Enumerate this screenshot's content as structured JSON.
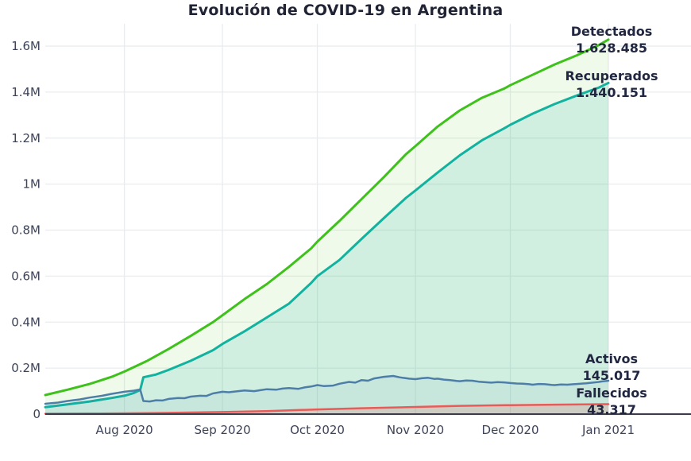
{
  "title": "Evolución de COVID-19 en Argentina",
  "colors": {
    "background": "#ffffff",
    "grid": "#e8ecef",
    "axis": "#3c3c48",
    "tick_text": "#3d4359",
    "title_text": "#1f2333",
    "annotation_text": "#222741",
    "detectados": "#3fc11c",
    "recuperados": "#12b2a0",
    "activos": "#4d7ea8",
    "fallecidos": "#ea5a57"
  },
  "chart_data": {
    "type": "line",
    "title": "Evolución de COVID-19 en Argentina",
    "grid": true,
    "legend_position": "end-of-line annotations (right side)",
    "x_axis": {
      "range_days": [
        0,
        178
      ],
      "ticks": [
        {
          "label": "Aug 2020",
          "day": 25
        },
        {
          "label": "Sep 2020",
          "day": 56
        },
        {
          "label": "Oct 2020",
          "day": 86
        },
        {
          "label": "Nov 2020",
          "day": 117
        },
        {
          "label": "Dec 2020",
          "day": 147
        },
        {
          "label": "Jan 2021",
          "day": 178
        }
      ]
    },
    "y_axis": {
      "range": [
        0,
        1600000
      ],
      "ticks": [
        {
          "label": "0",
          "value": 0
        },
        {
          "label": "0.2M",
          "value": 200000
        },
        {
          "label": "0.4M",
          "value": 400000
        },
        {
          "label": "0.6M",
          "value": 600000
        },
        {
          "label": "0.8M",
          "value": 800000
        },
        {
          "label": "1M",
          "value": 1000000
        },
        {
          "label": "1.2M",
          "value": 1200000
        },
        {
          "label": "1.4M",
          "value": 1400000
        },
        {
          "label": "1.6M",
          "value": 1600000
        }
      ]
    },
    "series": [
      {
        "name": "Detectados",
        "final_value": 1628485,
        "color": "#3fc11c",
        "fill": "rgba(102,204,51,0.10)",
        "width": 3,
        "points": [
          [
            0,
            83000
          ],
          [
            7,
            106000
          ],
          [
            14,
            131000
          ],
          [
            21,
            162000
          ],
          [
            25,
            185000
          ],
          [
            32,
            230000
          ],
          [
            39,
            283000
          ],
          [
            46,
            340000
          ],
          [
            53,
            400000
          ],
          [
            56,
            430000
          ],
          [
            63,
            500000
          ],
          [
            70,
            565000
          ],
          [
            77,
            640000
          ],
          [
            84,
            720000
          ],
          [
            86,
            750000
          ],
          [
            93,
            840000
          ],
          [
            100,
            935000
          ],
          [
            107,
            1030000
          ],
          [
            114,
            1130000
          ],
          [
            117,
            1165000
          ],
          [
            124,
            1250000
          ],
          [
            131,
            1320000
          ],
          [
            138,
            1375000
          ],
          [
            145,
            1415000
          ],
          [
            147,
            1430000
          ],
          [
            154,
            1475000
          ],
          [
            161,
            1520000
          ],
          [
            168,
            1560000
          ],
          [
            175,
            1605000
          ],
          [
            178,
            1628485
          ]
        ]
      },
      {
        "name": "Recuperados",
        "final_value": 1440151,
        "color": "#12b2a0",
        "fill": "rgba(18,178,160,0.14)",
        "width": 3,
        "points": [
          [
            0,
            30000
          ],
          [
            7,
            42000
          ],
          [
            14,
            55000
          ],
          [
            21,
            70000
          ],
          [
            25,
            80000
          ],
          [
            28,
            92000
          ],
          [
            30,
            105000
          ],
          [
            31,
            160000
          ],
          [
            35,
            172000
          ],
          [
            39,
            192000
          ],
          [
            46,
            232000
          ],
          [
            53,
            278000
          ],
          [
            56,
            305000
          ],
          [
            63,
            360000
          ],
          [
            70,
            420000
          ],
          [
            77,
            480000
          ],
          [
            84,
            570000
          ],
          [
            86,
            600000
          ],
          [
            93,
            670000
          ],
          [
            100,
            762000
          ],
          [
            107,
            852000
          ],
          [
            114,
            940000
          ],
          [
            117,
            972000
          ],
          [
            124,
            1050000
          ],
          [
            131,
            1125000
          ],
          [
            138,
            1190000
          ],
          [
            145,
            1242000
          ],
          [
            147,
            1258000
          ],
          [
            154,
            1306000
          ],
          [
            161,
            1348000
          ],
          [
            168,
            1385000
          ],
          [
            175,
            1420000
          ],
          [
            178,
            1440151
          ]
        ]
      },
      {
        "name": "Activos",
        "final_value": 145017,
        "color": "#4d7ea8",
        "fill": "rgba(77,126,168,0.06)",
        "width": 2.5,
        "points": [
          [
            0,
            45000
          ],
          [
            4,
            50000
          ],
          [
            7,
            57000
          ],
          [
            11,
            64000
          ],
          [
            14,
            72000
          ],
          [
            18,
            80000
          ],
          [
            21,
            88000
          ],
          [
            25,
            97000
          ],
          [
            28,
            102000
          ],
          [
            30,
            107000
          ],
          [
            31,
            57000
          ],
          [
            33,
            55000
          ],
          [
            35,
            60000
          ],
          [
            37,
            59000
          ],
          [
            39,
            66000
          ],
          [
            42,
            70000
          ],
          [
            44,
            69000
          ],
          [
            46,
            76000
          ],
          [
            49,
            80000
          ],
          [
            51,
            79000
          ],
          [
            53,
            90000
          ],
          [
            56,
            97000
          ],
          [
            58,
            95000
          ],
          [
            61,
            100000
          ],
          [
            63,
            103000
          ],
          [
            66,
            100000
          ],
          [
            68,
            104000
          ],
          [
            70,
            108000
          ],
          [
            73,
            106000
          ],
          [
            75,
            111000
          ],
          [
            77,
            113000
          ],
          [
            80,
            110000
          ],
          [
            82,
            116000
          ],
          [
            84,
            120000
          ],
          [
            86,
            126000
          ],
          [
            88,
            122000
          ],
          [
            91,
            124000
          ],
          [
            93,
            132000
          ],
          [
            96,
            140000
          ],
          [
            98,
            137000
          ],
          [
            100,
            148000
          ],
          [
            102,
            145000
          ],
          [
            104,
            155000
          ],
          [
            107,
            162000
          ],
          [
            110,
            166000
          ],
          [
            112,
            160000
          ],
          [
            113,
            158000
          ],
          [
            115,
            154000
          ],
          [
            117,
            152000
          ],
          [
            119,
            156000
          ],
          [
            121,
            158000
          ],
          [
            123,
            153000
          ],
          [
            124,
            154000
          ],
          [
            126,
            150000
          ],
          [
            128,
            148000
          ],
          [
            130,
            144000
          ],
          [
            131,
            143000
          ],
          [
            133,
            146000
          ],
          [
            135,
            145000
          ],
          [
            137,
            141000
          ],
          [
            138,
            140000
          ],
          [
            140,
            138000
          ],
          [
            141,
            137000
          ],
          [
            143,
            139000
          ],
          [
            145,
            138000
          ],
          [
            147,
            135000
          ],
          [
            149,
            133000
          ],
          [
            151,
            132000
          ],
          [
            153,
            130000
          ],
          [
            154,
            128000
          ],
          [
            156,
            131000
          ],
          [
            158,
            130000
          ],
          [
            160,
            127000
          ],
          [
            161,
            126000
          ],
          [
            163,
            129000
          ],
          [
            165,
            128000
          ],
          [
            167,
            130000
          ],
          [
            168,
            131000
          ],
          [
            170,
            133000
          ],
          [
            171,
            134000
          ],
          [
            173,
            137000
          ],
          [
            175,
            140000
          ],
          [
            176,
            142000
          ],
          [
            178,
            145017
          ]
        ]
      },
      {
        "name": "Fallecidos",
        "final_value": 43317,
        "color": "#ea5a57",
        "fill": "rgba(234,90,87,0.18)",
        "width": 2.5,
        "points": [
          [
            0,
            1600
          ],
          [
            14,
            2500
          ],
          [
            25,
            3600
          ],
          [
            39,
            5500
          ],
          [
            56,
            8900
          ],
          [
            70,
            13000
          ],
          [
            86,
            20500
          ],
          [
            100,
            25500
          ],
          [
            117,
            31000
          ],
          [
            131,
            36000
          ],
          [
            147,
            39000
          ],
          [
            161,
            41200
          ],
          [
            178,
            43317
          ]
        ]
      }
    ],
    "annotations": [
      {
        "label": "Detectados",
        "value": "1.628.485"
      },
      {
        "label": "Recuperados",
        "value": "1.440.151"
      },
      {
        "label": "Activos",
        "value": "145.017"
      },
      {
        "label": "Fallecidos",
        "value": "43.317"
      }
    ]
  }
}
